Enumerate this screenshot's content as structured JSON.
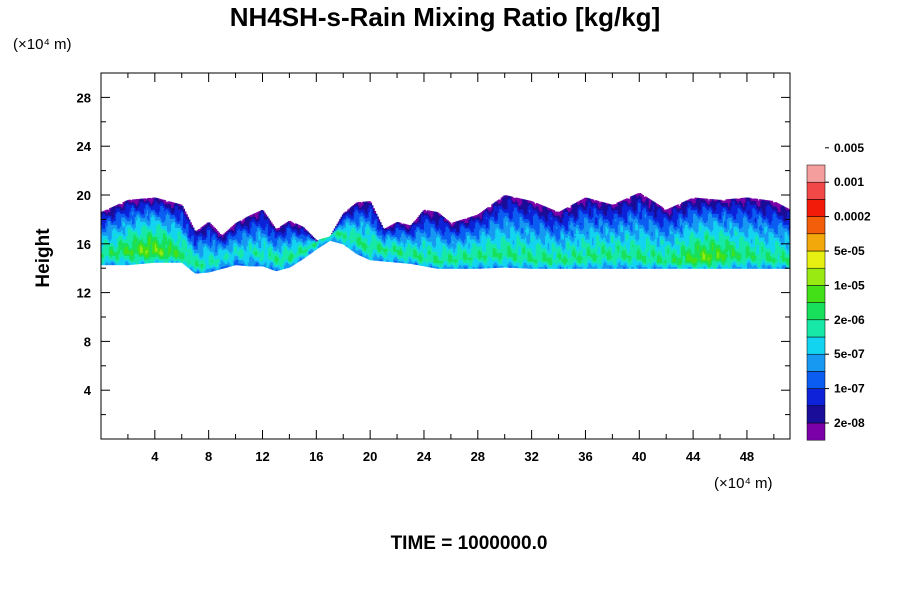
{
  "chart_data": {
    "type": "heatmap",
    "title": "NH4SH-s-Rain Mixing Ratio [kg/kg]",
    "ylabel": "Height",
    "x_unit": "(×10⁴ m)",
    "y_unit": "(×10⁴ m)",
    "xlim": [
      0,
      51.2
    ],
    "ylim": [
      0,
      30
    ],
    "x_ticks": [
      "4",
      "8",
      "12",
      "16",
      "20",
      "24",
      "28",
      "32",
      "36",
      "40",
      "44",
      "48"
    ],
    "y_ticks": [
      "4",
      "8",
      "12",
      "16",
      "20",
      "24",
      "28"
    ],
    "footer": "TIME = 1000000.0",
    "colorbar": {
      "colors": [
        "#7b00a8",
        "#1a0d99",
        "#0d22d9",
        "#0b5df2",
        "#1799f2",
        "#12d4f0",
        "#17e8a8",
        "#18e05a",
        "#44e017",
        "#99ea13",
        "#e6ee12",
        "#f2a80a",
        "#f25e0a",
        "#f21b0a",
        "#f24848",
        "#f59e9e"
      ],
      "labels": [
        "2e-08",
        "1e-07",
        "5e-07",
        "2e-06",
        "1e-05",
        "5e-05",
        "0.0002",
        "0.001",
        "0.005"
      ]
    },
    "layer_profile": {
      "x": [
        0,
        2,
        4,
        6,
        7,
        8,
        9,
        10,
        11,
        12,
        13,
        14,
        15,
        16,
        17,
        18,
        19,
        20,
        21,
        22,
        23,
        24,
        25,
        26,
        28,
        30,
        32,
        34,
        36,
        38,
        40,
        42,
        44,
        46,
        48,
        50,
        51.2
      ],
      "base": [
        14.3,
        14.3,
        14.5,
        14.5,
        13.6,
        13.7,
        14,
        14.3,
        14.2,
        14.2,
        13.8,
        14.1,
        14.8,
        15.6,
        16.3,
        16,
        15.2,
        14.7,
        14.6,
        14.5,
        14.4,
        14.2,
        14,
        14,
        14,
        14.1,
        14,
        14,
        14,
        14,
        14,
        14,
        14,
        14,
        14,
        14,
        14
      ],
      "top": [
        18.6,
        19.6,
        19.8,
        19.2,
        17,
        17.8,
        16.7,
        17.7,
        18.3,
        18.8,
        17.2,
        17.9,
        17.4,
        16.3,
        16.6,
        18.5,
        19.4,
        19.5,
        17.2,
        17.8,
        17.5,
        18.8,
        18.6,
        17.7,
        18.4,
        20,
        19.5,
        18.6,
        19.8,
        19.2,
        20.2,
        18.8,
        19.8,
        19.6,
        19.8,
        19.5,
        18.8
      ]
    }
  }
}
